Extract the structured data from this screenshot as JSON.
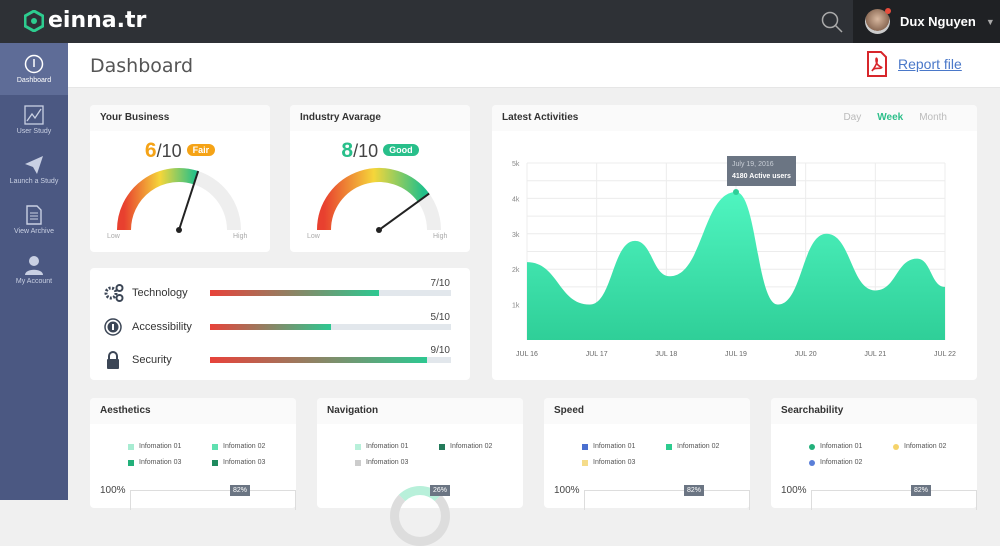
{
  "app": {
    "logo": "einna.tr",
    "user_name": "Dux Nguyen"
  },
  "sidebar": {
    "items": [
      {
        "label": "Dashboard",
        "icon": "dashboard-icon",
        "active": true
      },
      {
        "label": "User Study",
        "icon": "chart-icon"
      },
      {
        "label": "Launch a Study",
        "icon": "paper-plane-icon"
      },
      {
        "label": "View Archive",
        "icon": "document-icon"
      },
      {
        "label": "My Account",
        "icon": "user-icon"
      }
    ]
  },
  "header": {
    "title": "Dashboard",
    "report_label": "Report file"
  },
  "gauges": [
    {
      "title": "Your Business",
      "score": "6",
      "out_of": "/10",
      "badge": "Fair",
      "color": "#f5a316",
      "value": 6,
      "low": "Low",
      "high": "High"
    },
    {
      "title": "Industry Avarage",
      "score": "8",
      "out_of": "/10",
      "badge": "Good",
      "color": "#28bf8a",
      "value": 8,
      "low": "Low",
      "high": "High"
    }
  ],
  "metrics": [
    {
      "label": "Technology",
      "value": "7/10",
      "fraction": 0.7,
      "icon": "gears-icon"
    },
    {
      "label": "Accessibility",
      "value": "5/10",
      "fraction": 0.5,
      "icon": "accessibility-icon"
    },
    {
      "label": "Security",
      "value": "9/10",
      "fraction": 0.9,
      "icon": "lock-icon"
    }
  ],
  "activities": {
    "title": "Latest Activities",
    "tabs": [
      "Day",
      "Week",
      "Month"
    ],
    "active_tab": "Week",
    "tooltip": {
      "date": "July 19, 2016",
      "text": "4180 Active users"
    }
  },
  "chart_data": {
    "type": "area",
    "x_ticks": [
      "JUL 16",
      "JUL 17",
      "JUL 18",
      "JUL 19",
      "JUL 20",
      "JUL 21",
      "JUL 22"
    ],
    "y_ticks": [
      "1k",
      "2k",
      "3k",
      "4k",
      "5k"
    ],
    "ylim": [
      0,
      5000
    ],
    "grid": true,
    "color": "#3ee8b0",
    "points": [
      {
        "x": 0,
        "y": 2200
      },
      {
        "x": 0.9,
        "y": 1000
      },
      {
        "x": 1.55,
        "y": 2800
      },
      {
        "x": 2.05,
        "y": 1800
      },
      {
        "x": 3,
        "y": 4180
      },
      {
        "x": 3.6,
        "y": 1000
      },
      {
        "x": 4.3,
        "y": 3000
      },
      {
        "x": 5,
        "y": 1400
      },
      {
        "x": 5.6,
        "y": 2300
      },
      {
        "x": 6,
        "y": 1500
      }
    ]
  },
  "bottom_cards": [
    {
      "title": "Aesthetics",
      "legend": [
        {
          "label": "Infomation 01",
          "color": "#a8ecd2"
        },
        {
          "label": "Infomation 02",
          "color": "#5fe0b0"
        },
        {
          "label": "Infomation 03",
          "color": "#22b07a"
        },
        {
          "label": "Infomation 03",
          "color": "#1f8a5e"
        }
      ],
      "axis": "100%",
      "tag": "82%"
    },
    {
      "title": "Navigation",
      "legend": [
        {
          "label": "Infomation 01",
          "color": "#b8f0da"
        },
        {
          "label": "Infomation 02",
          "color": "#237a5a"
        },
        {
          "label": "Infomation 03",
          "color": "#cccccc"
        }
      ],
      "tag": "26%"
    },
    {
      "title": "Speed",
      "legend": [
        {
          "label": "Infomation 01",
          "color": "#4a6fd0"
        },
        {
          "label": "Infomation 02",
          "color": "#2dcc8f"
        },
        {
          "label": "Infomation 03",
          "color": "#f5dc8a"
        }
      ],
      "axis": "100%",
      "tag": "82%"
    },
    {
      "title": "Searchability",
      "legend": [
        {
          "label": "Infomation 01",
          "color": "#22b07a"
        },
        {
          "label": "Infomation 02",
          "color": "#f5d36a"
        },
        {
          "label": "Infomation 02",
          "color": "#5a7fd8"
        }
      ],
      "axis": "100%",
      "tag": "82%"
    }
  ]
}
